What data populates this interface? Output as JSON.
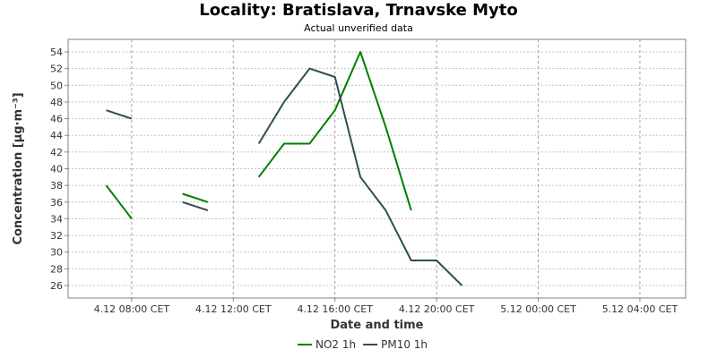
{
  "chart_data": {
    "type": "line",
    "title": "Locality: Bratislava, Trnavske Myto",
    "subtitle": "Actual unverified data",
    "xlabel": "Date and time",
    "ylabel": "Concentration [µg·m⁻³]",
    "x_ticks": [
      "4.12 08:00 CET",
      "4.12 12:00 CET",
      "4.12 16:00 CET",
      "4.12 20:00 CET",
      "5.12 00:00 CET",
      "5.12 04:00 CET"
    ],
    "x_tick_hours": [
      8,
      12,
      16,
      20,
      24,
      28
    ],
    "x_range_hours": [
      5.5,
      29.8
    ],
    "y_ticks": [
      26,
      28,
      30,
      32,
      34,
      36,
      38,
      40,
      42,
      44,
      46,
      48,
      50,
      52,
      54
    ],
    "ylim": [
      24.5,
      55.5
    ],
    "grid": true,
    "legend_position": "bottom-center",
    "series": [
      {
        "name": "NO2 1h",
        "color": "#008000",
        "points": [
          [
            7,
            38
          ],
          [
            8,
            34
          ],
          [
            9,
            null
          ],
          [
            10,
            37
          ],
          [
            11,
            36
          ],
          [
            12,
            null
          ],
          [
            13,
            39
          ],
          [
            14,
            43
          ],
          [
            15,
            43
          ],
          [
            16,
            47
          ],
          [
            17,
            54
          ],
          [
            18,
            45
          ],
          [
            19,
            35
          ]
        ]
      },
      {
        "name": "PM10 1h",
        "color": "#2f4f4f",
        "points": [
          [
            7,
            47
          ],
          [
            8,
            46
          ],
          [
            9,
            null
          ],
          [
            10,
            36
          ],
          [
            11,
            35
          ],
          [
            12,
            null
          ],
          [
            13,
            43
          ],
          [
            14,
            48
          ],
          [
            15,
            52
          ],
          [
            16,
            51
          ],
          [
            17,
            39
          ],
          [
            18,
            35
          ],
          [
            19,
            29
          ],
          [
            20,
            29
          ],
          [
            21,
            26
          ]
        ]
      }
    ]
  }
}
